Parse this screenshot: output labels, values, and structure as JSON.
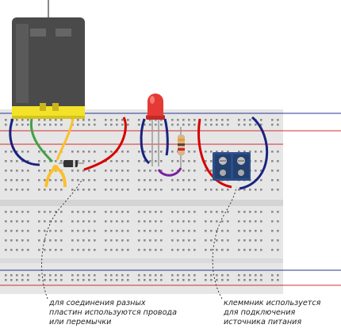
{
  "captions": {
    "left": {
      "line1": "для соединения разных",
      "line2": "пластин используются провода",
      "line3": "или перемычки"
    },
    "right": {
      "line1": "клеммник используется",
      "line2": "для подключения",
      "line3": "источника питания"
    }
  },
  "colors": {
    "breadboard": "#e6e6e6",
    "rail_red": "#d32f2f",
    "rail_blue": "#283593",
    "wire_red": "#d50000",
    "wire_blue": "#1a237e",
    "wire_green": "#43a047",
    "wire_yellow": "#fbc02d",
    "wire_purple": "#7b1fa2",
    "motor_body": "#4a4a4a",
    "motor_plate": "#f2e22a",
    "led": "#e53935",
    "terminal_block": "#2c4f8a"
  },
  "icons": {
    "motor": "dc-motor-icon",
    "led": "red-led-icon",
    "resistor": "resistor-icon",
    "diode": "diode-icon",
    "terminal": "terminal-block-icon"
  }
}
